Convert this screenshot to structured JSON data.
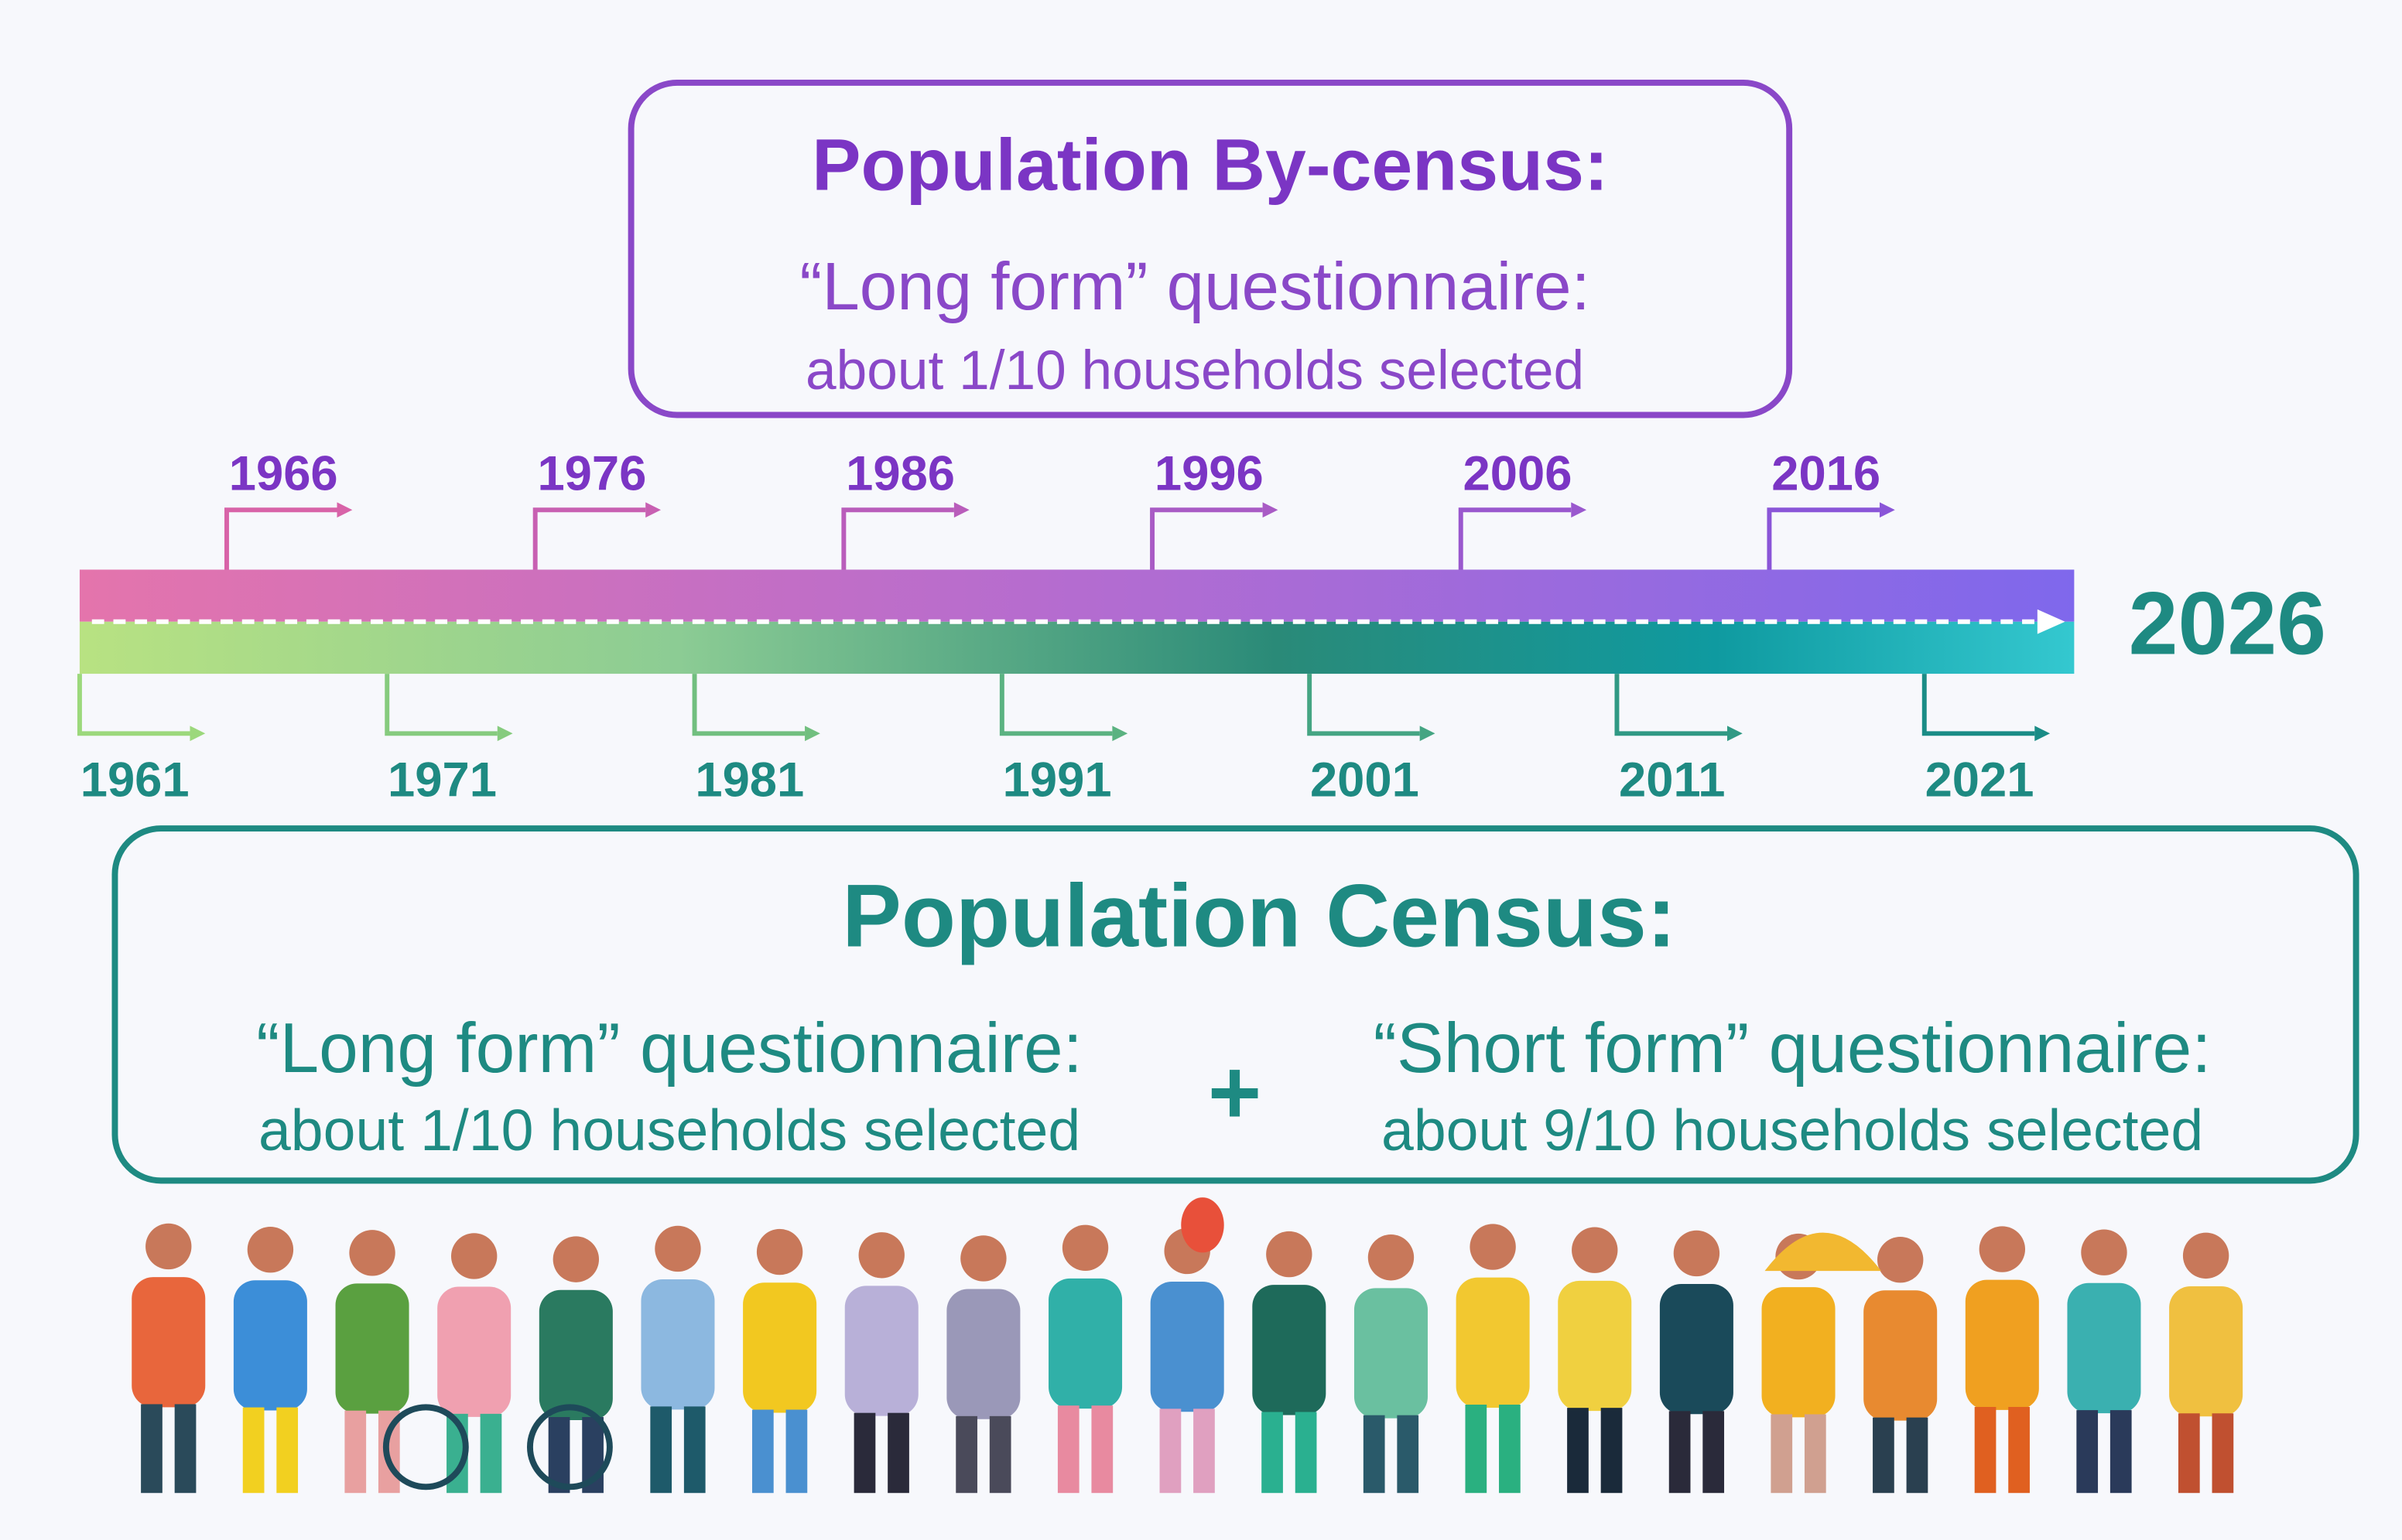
{
  "by_census": {
    "title": "Population By-census:",
    "line1": "“Long form” questionnaire:",
    "line2": "about 1/10 households selected"
  },
  "timeline": {
    "top_years": [
      "1966",
      "1976",
      "1986",
      "1996",
      "2006",
      "2016"
    ],
    "bottom_years": [
      "1961",
      "1971",
      "1981",
      "1991",
      "2001",
      "2011",
      "2021"
    ],
    "next_year": "2026"
  },
  "census": {
    "title": "Population Census:",
    "left_line1": "“Long form” questionnaire:",
    "left_line2": "about 1/10 households selected",
    "plus": "+",
    "right_line1": "“Short form” questionnaire:",
    "right_line2": "about 9/10 households selected"
  }
}
